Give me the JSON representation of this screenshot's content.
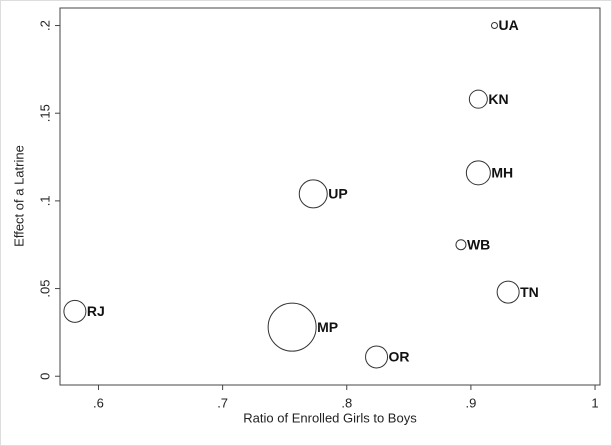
{
  "chart_data": {
    "type": "scatter",
    "x_label": "Ratio of Enrolled Girls to Boys",
    "y_label": "Effect of a Latrine",
    "labels": [
      "UA",
      "KN",
      "MH",
      "UP",
      "WB",
      "TN",
      "RJ",
      "MP",
      "OR"
    ],
    "x": [
      0.919,
      0.906,
      0.906,
      0.773,
      0.892,
      0.93,
      0.581,
      0.756,
      0.824
    ],
    "values": [
      0.2,
      0.158,
      0.116,
      0.104,
      0.075,
      0.048,
      0.037,
      0.028,
      0.011
    ],
    "sizes": [
      9,
      81,
      144,
      196,
      25,
      121,
      121,
      576,
      121
    ],
    "color": "#333333",
    "xlim": [
      0.569,
      1.004
    ],
    "ylim": [
      -0.005,
      0.21
    ],
    "xticks": [
      {
        "value": 0.6,
        "label": ".6"
      },
      {
        "value": 0.7,
        "label": ".7"
      },
      {
        "value": 0.8,
        "label": ".8"
      },
      {
        "value": 0.9,
        "label": ".9"
      },
      1
    ],
    "yticks": [
      0,
      {
        "value": 0.05,
        "label": ".05"
      },
      {
        "value": 0.1,
        "label": ".1"
      },
      {
        "value": 0.15,
        "label": ".15"
      },
      {
        "value": 0.2,
        "label": ".2"
      }
    ],
    "grid": false
  }
}
